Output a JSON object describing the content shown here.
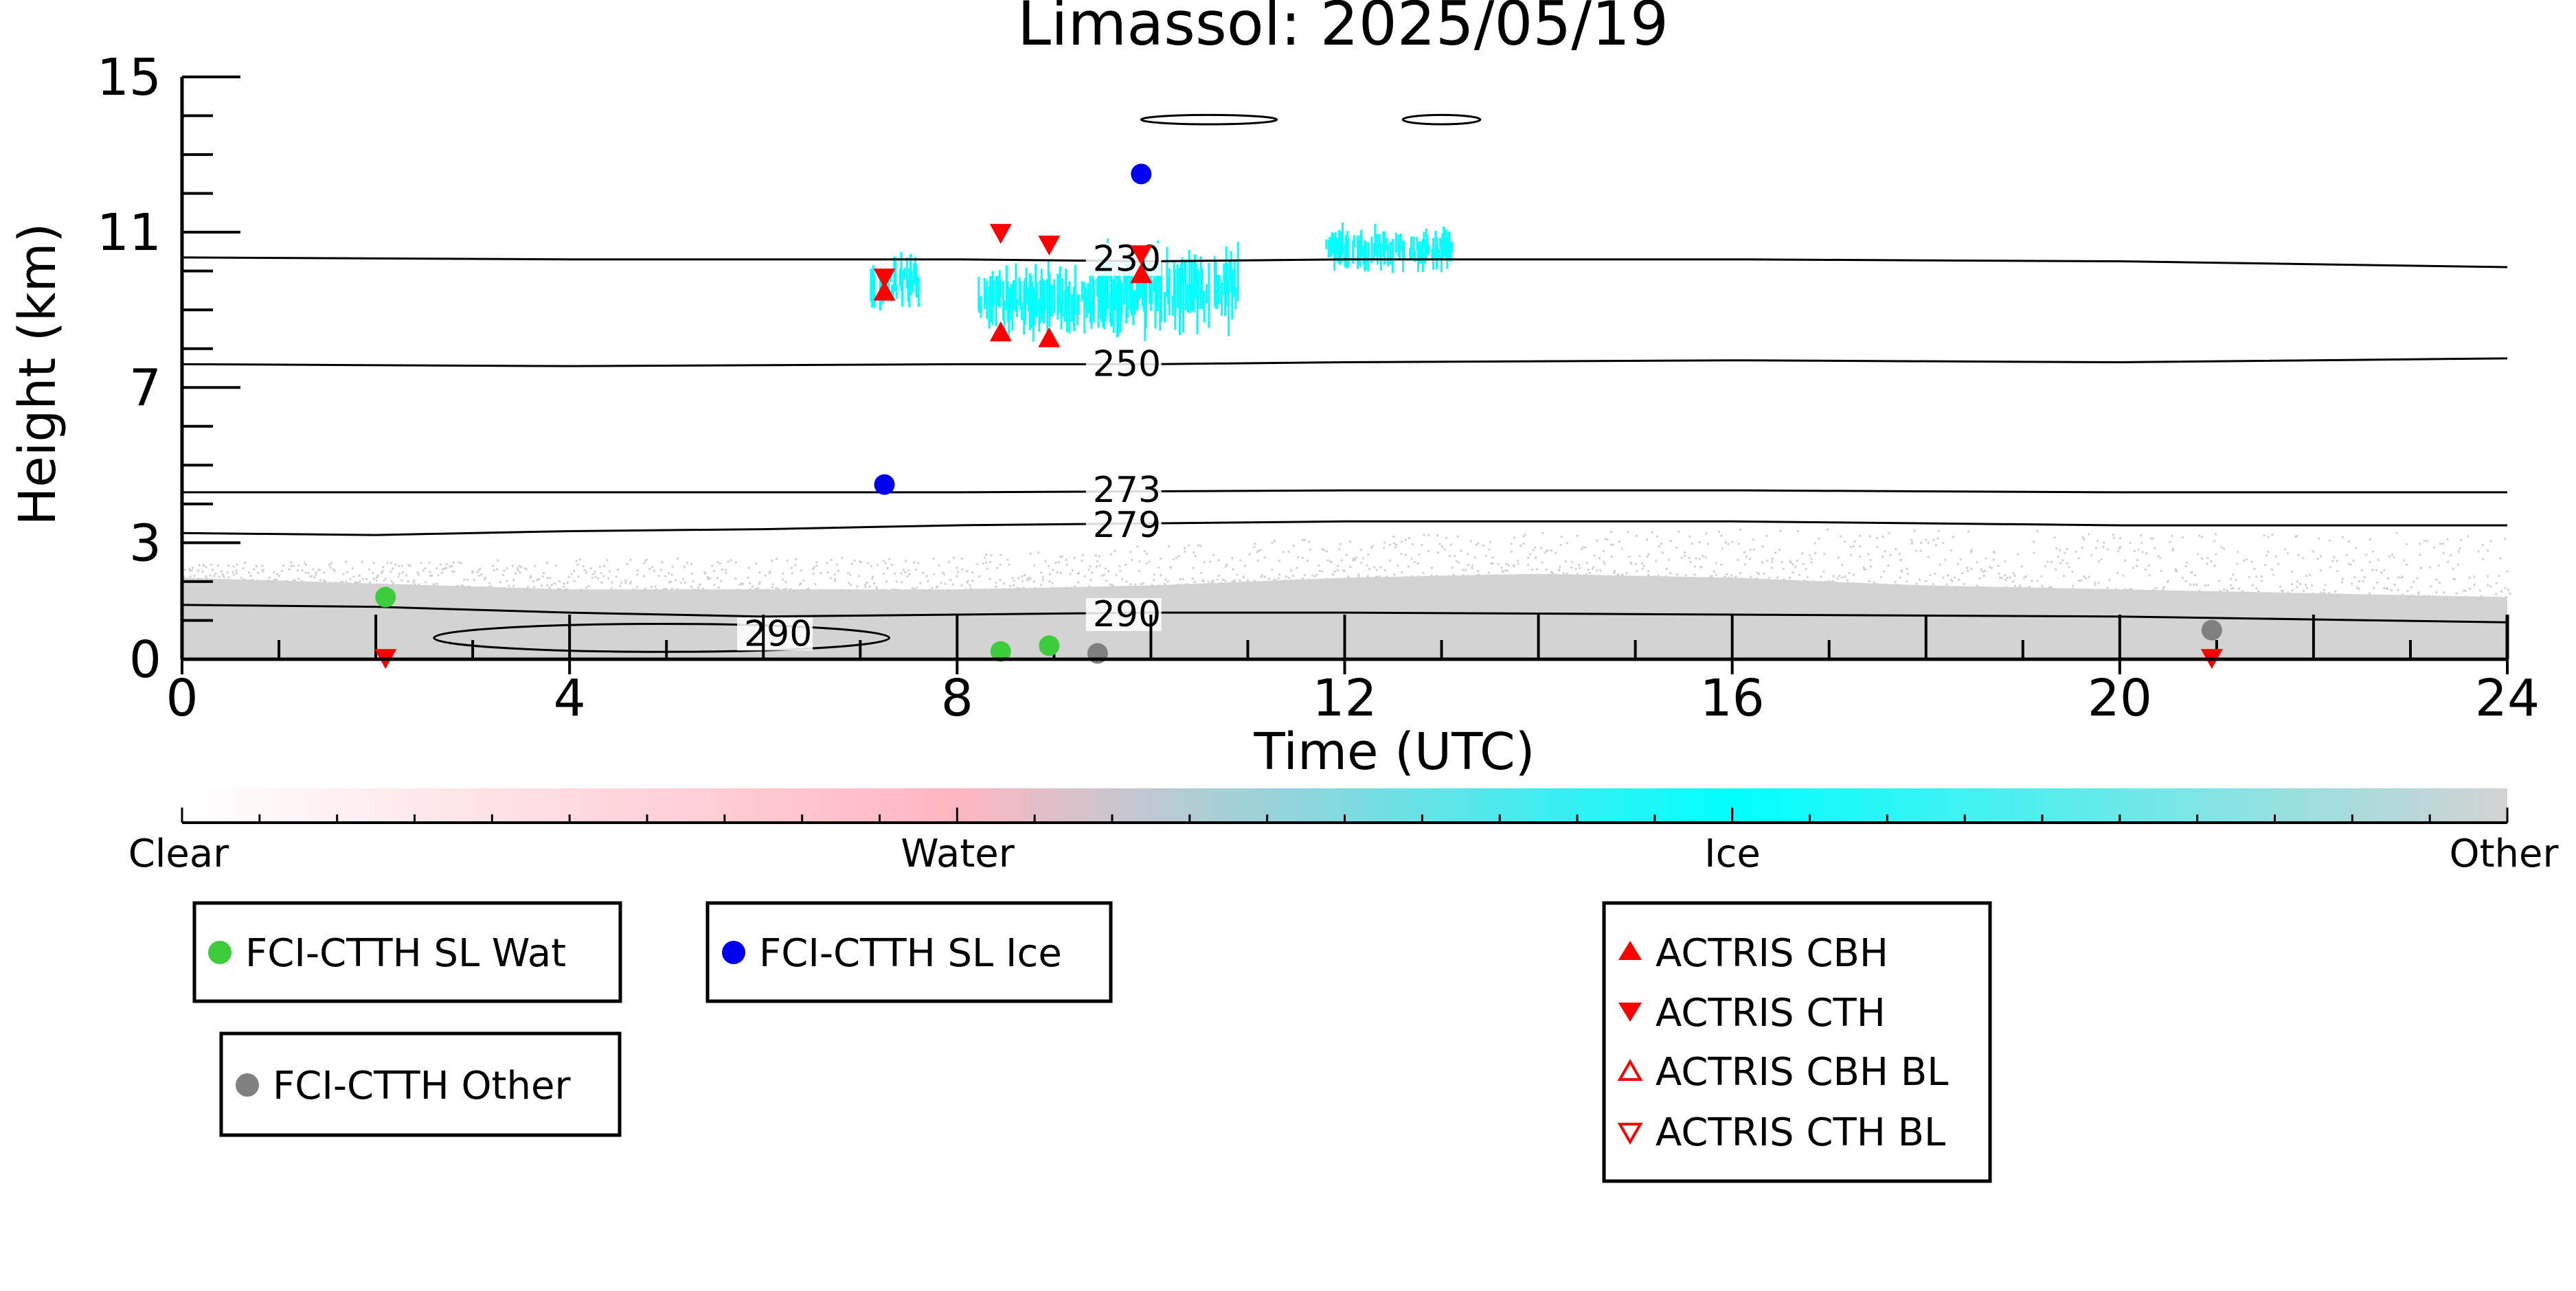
{
  "chart_data": {
    "type": "scatter",
    "title": "Limassol: 2025/05/19",
    "xlabel": "Time (UTC)",
    "ylabel": "Height (km)",
    "xlim": [
      0,
      24
    ],
    "ylim": [
      0,
      15
    ],
    "x_ticks": [
      0,
      4,
      8,
      12,
      16,
      20,
      24
    ],
    "y_ticks": [
      0,
      3,
      7,
      11,
      15
    ],
    "contours": [
      {
        "label": "230",
        "x": [
          0,
          4,
          8,
          10,
          12,
          16,
          20,
          24
        ],
        "y": [
          10.35,
          10.3,
          10.3,
          10.25,
          10.3,
          10.3,
          10.25,
          10.1
        ]
      },
      {
        "label": "250",
        "x": [
          0,
          4,
          8,
          10,
          12,
          16,
          20,
          24
        ],
        "y": [
          7.6,
          7.55,
          7.6,
          7.6,
          7.65,
          7.7,
          7.65,
          7.75
        ]
      },
      {
        "label": "273",
        "x": [
          0,
          4,
          8,
          12,
          16,
          20,
          24
        ],
        "y": [
          4.3,
          4.3,
          4.3,
          4.35,
          4.35,
          4.3,
          4.3
        ]
      },
      {
        "label": "279",
        "x": [
          0,
          2,
          4,
          6,
          8,
          10,
          12,
          16,
          20,
          24
        ],
        "y": [
          3.25,
          3.2,
          3.3,
          3.35,
          3.45,
          3.5,
          3.55,
          3.55,
          3.45,
          3.45
        ]
      },
      {
        "label": "290",
        "x": [
          0,
          2,
          4,
          6,
          8,
          10,
          12,
          16,
          20,
          24
        ],
        "y": [
          1.4,
          1.35,
          1.2,
          1.1,
          1.15,
          1.2,
          1.2,
          1.15,
          1.1,
          0.95
        ]
      }
    ],
    "contour_label_positions": [
      {
        "label": "230",
        "x": 9.4,
        "y": 10.3
      },
      {
        "label": "250",
        "x": 9.4,
        "y": 7.6
      },
      {
        "label": "273",
        "x": 9.4,
        "y": 4.35
      },
      {
        "label": "279",
        "x": 9.4,
        "y": 3.45
      },
      {
        "label": "290",
        "x": 9.4,
        "y": 1.15
      },
      {
        "label": "290",
        "x": 5.8,
        "y": 0.65
      }
    ],
    "closed_contours": [
      {
        "x_range": [
          2.6,
          7.3
        ],
        "y": 0.55,
        "half_height": 0.18
      },
      {
        "x_range": [
          9.9,
          11.3
        ],
        "y": 13.9,
        "half_height": 0.06
      },
      {
        "x_range": [
          12.6,
          13.4
        ],
        "y": 13.9,
        "half_height": 0.06
      }
    ],
    "cloud_mask": {
      "ice_patches": [
        {
          "x": [
            7.1,
            7.6
          ],
          "y": [
            8.7,
            10.7
          ]
        },
        {
          "x": [
            8.2,
            9.7
          ],
          "y": [
            7.9,
            10.6
          ]
        },
        {
          "x": [
            9.4,
            10.9
          ],
          "y": [
            7.9,
            11.2
          ]
        },
        {
          "x": [
            11.8,
            13.1
          ],
          "y": [
            9.8,
            11.4
          ]
        }
      ],
      "other_top_km": [
        [
          0,
          2.1
        ],
        [
          4,
          1.8
        ],
        [
          8,
          1.8
        ],
        [
          10,
          1.9
        ],
        [
          12,
          2.1
        ],
        [
          14,
          2.2
        ],
        [
          16,
          2.1
        ],
        [
          18,
          1.9
        ],
        [
          20,
          1.8
        ],
        [
          24,
          1.6
        ]
      ],
      "other_scatter_top_km": [
        [
          0,
          2.5
        ],
        [
          4,
          2.6
        ],
        [
          8,
          2.7
        ],
        [
          12,
          3.2
        ],
        [
          16,
          3.4
        ],
        [
          20,
          3.3
        ],
        [
          24,
          3.3
        ]
      ]
    },
    "series": [
      {
        "name": "FCI-CTTH SL Wat",
        "marker": "circle",
        "color": "#3ccc3c",
        "x": [
          2.1,
          8.45,
          8.95
        ],
        "y": [
          1.6,
          0.2,
          0.35
        ]
      },
      {
        "name": "FCI-CTTH SL Ice",
        "marker": "circle",
        "color": "#0000ee",
        "x": [
          7.25,
          9.9
        ],
        "y": [
          4.5,
          12.5
        ]
      },
      {
        "name": "FCI-CTTH Other",
        "marker": "circle",
        "color": "#808080",
        "x": [
          9.45,
          20.95
        ],
        "y": [
          0.15,
          0.75
        ]
      },
      {
        "name": "ACTRIS CBH",
        "marker": "triangle-up",
        "color": "#ff0000",
        "x": [
          7.25,
          8.45,
          8.95,
          9.9
        ],
        "y": [
          9.45,
          8.4,
          8.25,
          9.9
        ]
      },
      {
        "name": "ACTRIS CTH",
        "marker": "triangle-down",
        "color": "#ff0000",
        "x": [
          2.1,
          7.25,
          8.45,
          8.95,
          9.9,
          20.95
        ],
        "y": [
          0.05,
          9.85,
          11.0,
          10.7,
          10.45,
          0.05
        ]
      },
      {
        "name": "ACTRIS CBH BL",
        "marker": "triangle-up-open",
        "color": "#ff0000",
        "x": [],
        "y": []
      },
      {
        "name": "ACTRIS CTH BL",
        "marker": "triangle-down-open",
        "color": "#ff0000",
        "x": [],
        "y": []
      }
    ],
    "colorbar": {
      "labels": [
        "Clear",
        "Water",
        "Ice",
        "Other"
      ],
      "colors": [
        "#ffffff",
        "#ffb6c1",
        "#00ffff",
        "#d3d3d3"
      ]
    },
    "legend_placement": "below plot"
  }
}
